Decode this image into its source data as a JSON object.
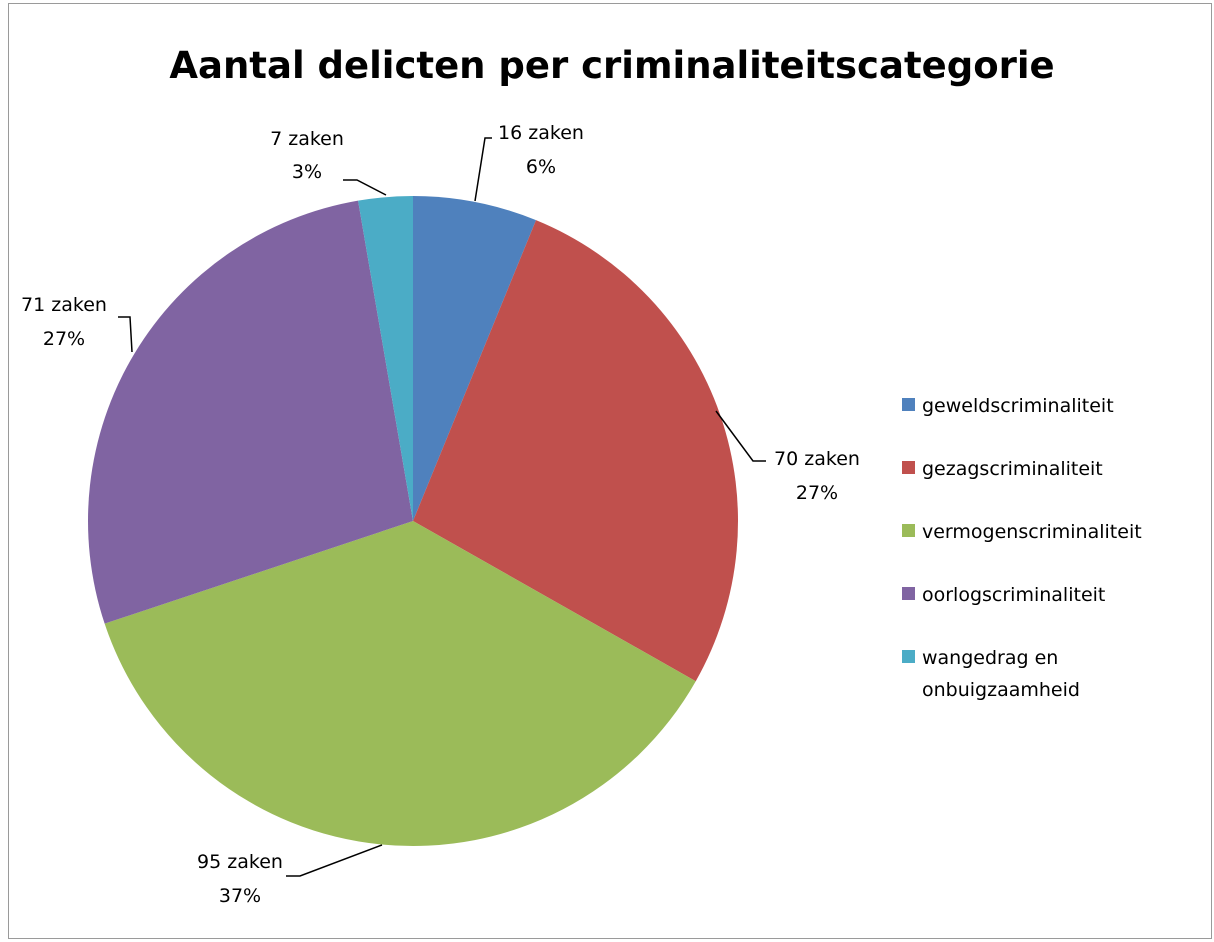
{
  "chart_data": {
    "type": "pie",
    "title": "Aantal delicten per criminaliteitscategorie",
    "series": [
      {
        "name": "",
        "slices": [
          {
            "category": "geweldscriminaliteit",
            "value": 16,
            "value_label": "16 zaken",
            "percent_label": "6%",
            "color": "#4F81BD"
          },
          {
            "category": "gezagscriminaliteit",
            "value": 70,
            "value_label": "70 zaken",
            "percent_label": "27%",
            "color": "#C0504D"
          },
          {
            "category": "vermogenscriminaliteit",
            "value": 95,
            "value_label": "95 zaken",
            "percent_label": "37%",
            "color": "#9BBB59"
          },
          {
            "category": "oorlogscriminaliteit",
            "value": 71,
            "value_label": "71 zaken",
            "percent_label": "27%",
            "color": "#8064A2"
          },
          {
            "category": "wangedrag en onbuigzaamheid",
            "value": 7,
            "value_label": "7 zaken",
            "percent_label": "3%",
            "color": "#4BACC6"
          }
        ]
      }
    ],
    "legend": {
      "position": "right",
      "entries": [
        {
          "lines": [
            "geweldscriminaliteit"
          ]
        },
        {
          "lines": [
            "gezagscriminaliteit"
          ]
        },
        {
          "lines": [
            "vermogenscriminaliteit"
          ]
        },
        {
          "lines": [
            "oorlogscriminaliteit"
          ]
        },
        {
          "lines": [
            "wangedrag en",
            "onbuigzaamheid"
          ]
        }
      ]
    },
    "start_angle_deg": 0,
    "direction": "clockwise"
  }
}
